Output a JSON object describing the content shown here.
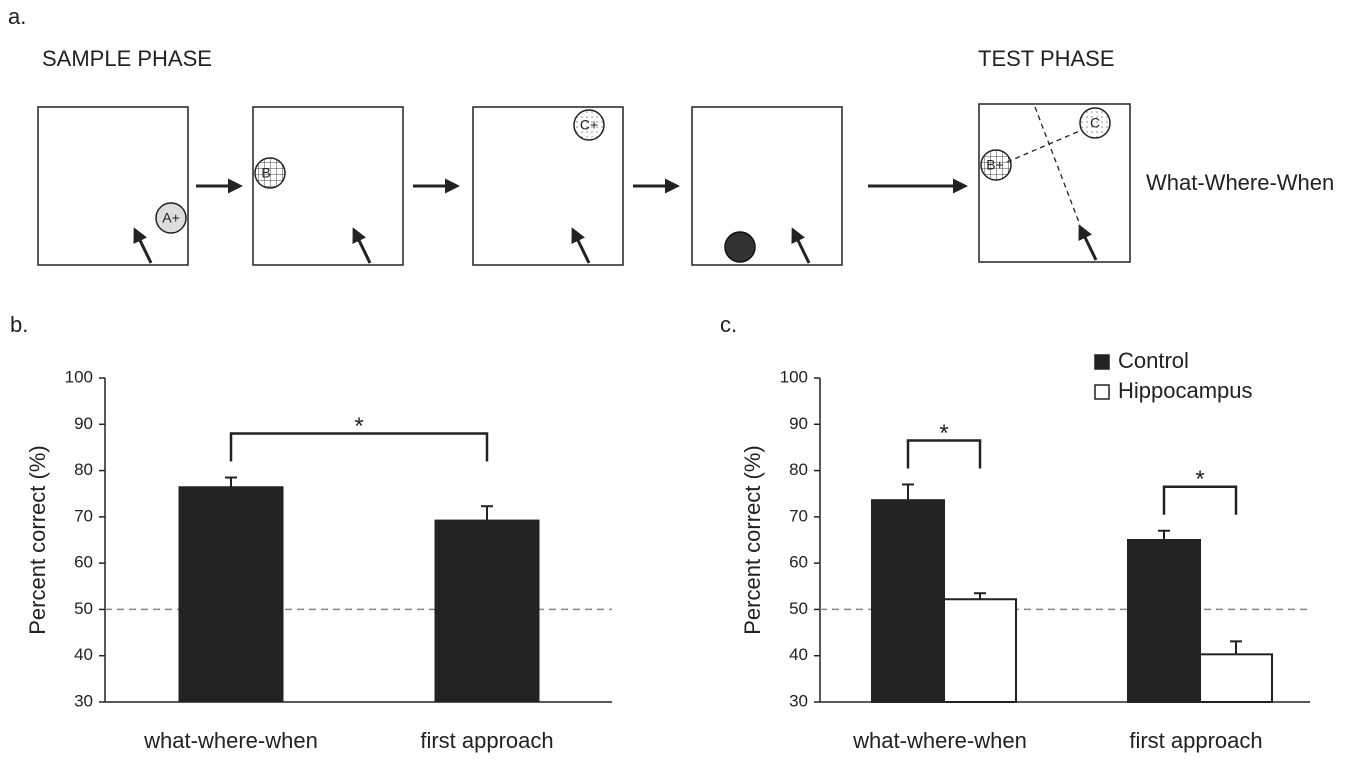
{
  "panel_a": {
    "label": "a.",
    "sample_phase": "SAMPLE PHASE",
    "test_phase": "TEST PHASE",
    "condition": "What-Where-When",
    "objects": {
      "a": "A+",
      "b": "B",
      "c": "C+",
      "test_b": "B+",
      "test_c": "C"
    }
  },
  "chart_data": [
    {
      "type": "bar",
      "panel_label": "b.",
      "y_label": "Percent correct (%)",
      "categories": [
        "what-where-when",
        "first approach"
      ],
      "values": [
        76.5,
        69.3
      ],
      "errors": [
        2,
        3
      ],
      "color": "#222222",
      "ylim": [
        30,
        100
      ],
      "yticks": [
        30,
        40,
        50,
        60,
        70,
        80,
        90,
        100
      ],
      "reference_line": 50,
      "annotations": [
        "*"
      ]
    },
    {
      "type": "grouped-bar",
      "panel_label": "c.",
      "y_label": "Percent correct (%)",
      "categories": [
        "what-where-when",
        "first approach"
      ],
      "series": [
        {
          "name": "Control",
          "color": "#222222",
          "values": [
            73.6,
            65
          ],
          "errors": [
            3.4,
            2
          ]
        },
        {
          "name": "Hippocampus",
          "color": "#ffffff",
          "values": [
            52.2,
            40.3
          ],
          "errors": [
            1.3,
            2.8
          ]
        }
      ],
      "ylim": [
        30,
        100
      ],
      "yticks": [
        30,
        40,
        50,
        60,
        70,
        80,
        90,
        100
      ],
      "reference_line": 50,
      "annotations": [
        "*",
        "*"
      ]
    }
  ]
}
